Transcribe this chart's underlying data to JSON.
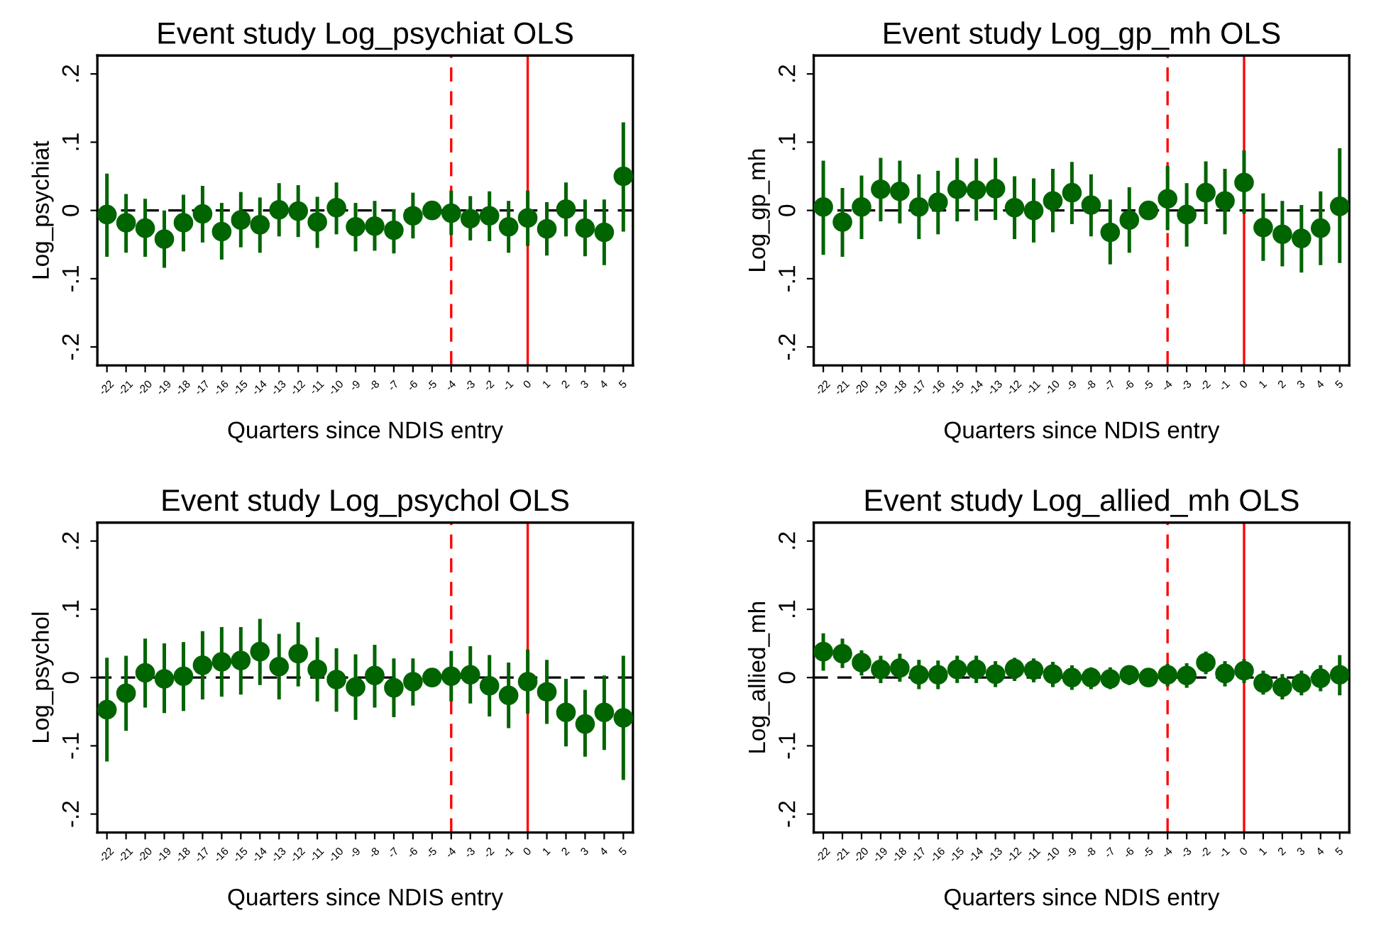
{
  "chart_data": [
    {
      "type": "scatter",
      "title": "Event study Log_psychiat OLS",
      "xlabel": "Quarters since NDIS entry",
      "ylabel": "Log_psychiat",
      "x": [
        -22,
        -21,
        -20,
        -19,
        -18,
        -17,
        -16,
        -15,
        -14,
        -13,
        -12,
        -11,
        -10,
        -9,
        -8,
        -7,
        -6,
        -5,
        -4,
        -3,
        -2,
        -1,
        0,
        1,
        2,
        3,
        4,
        5
      ],
      "series": [
        {
          "color": "#006400",
          "values": [
            -0.006,
            -0.018,
            -0.026,
            -0.042,
            -0.018,
            -0.005,
            -0.031,
            -0.014,
            -0.021,
            0.001,
            -0.001,
            -0.017,
            0.004,
            -0.024,
            -0.023,
            -0.029,
            -0.008,
            0.0,
            -0.004,
            -0.012,
            -0.008,
            -0.024,
            -0.011,
            -0.027,
            0.002,
            -0.026,
            -0.032,
            0.05
          ],
          "errors": [
            [
              -0.068,
              0.054
            ],
            [
              -0.062,
              0.024
            ],
            [
              -0.068,
              0.017
            ],
            [
              -0.084,
              0.0
            ],
            [
              -0.06,
              0.023
            ],
            [
              -0.047,
              0.036
            ],
            [
              -0.072,
              0.011
            ],
            [
              -0.054,
              0.027
            ],
            [
              -0.062,
              0.019
            ],
            [
              -0.038,
              0.04
            ],
            [
              -0.039,
              0.037
            ],
            [
              -0.055,
              0.02
            ],
            [
              -0.035,
              0.041
            ],
            [
              -0.06,
              0.011
            ],
            [
              -0.059,
              0.014
            ],
            [
              -0.063,
              0.002
            ],
            [
              -0.041,
              0.026
            ],
            null,
            [
              -0.036,
              0.029
            ],
            [
              -0.044,
              0.021
            ],
            [
              -0.045,
              0.028
            ],
            [
              -0.062,
              0.014
            ],
            [
              -0.052,
              0.029
            ],
            [
              -0.066,
              0.012
            ],
            [
              -0.038,
              0.041
            ],
            [
              -0.067,
              0.016
            ],
            [
              -0.08,
              0.016
            ],
            [
              -0.031,
              0.129
            ]
          ]
        }
      ],
      "xlim": [
        -22.5,
        5.5
      ],
      "xticks": [
        -22,
        -21,
        -20,
        -19,
        -18,
        -17,
        -16,
        -15,
        -14,
        -13,
        -12,
        -11,
        -10,
        -9,
        -8,
        -7,
        -6,
        -5,
        -4,
        -3,
        -2,
        -1,
        0,
        1,
        2,
        3,
        4,
        5
      ],
      "ylim": [
        -0.227,
        0.227
      ],
      "yticks": [
        {
          "value": -0.2,
          "label": "-.2"
        },
        {
          "value": -0.1,
          "label": "-.1"
        },
        {
          "value": 0,
          "label": "0"
        },
        {
          "value": 0.1,
          "label": ".1"
        },
        {
          "value": 0.2,
          "label": ".2"
        }
      ],
      "ref_lines": [
        {
          "axis": "x",
          "value": -4,
          "color": "#ff0000",
          "line_style": "dashed"
        },
        {
          "axis": "x",
          "value": 0,
          "color": "#ff0000",
          "line_style": "solid"
        },
        {
          "axis": "y",
          "value": 0,
          "color": "#000000",
          "line_style": "dashed"
        }
      ],
      "marker": "circle",
      "grid": false,
      "legend": false
    },
    {
      "type": "scatter",
      "title": "Event study Log_gp_mh OLS",
      "xlabel": "Quarters since NDIS entry",
      "ylabel": "Log_gp_mh",
      "x": [
        -22,
        -21,
        -20,
        -19,
        -18,
        -17,
        -16,
        -15,
        -14,
        -13,
        -12,
        -11,
        -10,
        -9,
        -8,
        -7,
        -6,
        -5,
        -4,
        -3,
        -2,
        -1,
        0,
        1,
        2,
        3,
        4,
        5
      ],
      "series": [
        {
          "color": "#006400",
          "values": [
            0.005,
            -0.017,
            0.005,
            0.031,
            0.028,
            0.005,
            0.012,
            0.031,
            0.03,
            0.032,
            0.004,
            0.0,
            0.014,
            0.026,
            0.008,
            -0.032,
            -0.014,
            0.0,
            0.017,
            -0.006,
            0.026,
            0.014,
            0.041,
            -0.025,
            -0.035,
            -0.041,
            -0.026,
            0.006
          ],
          "errors": [
            [
              -0.065,
              0.073
            ],
            [
              -0.068,
              0.033
            ],
            [
              -0.042,
              0.051
            ],
            [
              -0.016,
              0.077
            ],
            [
              -0.019,
              0.073
            ],
            [
              -0.042,
              0.053
            ],
            [
              -0.035,
              0.058
            ],
            [
              -0.016,
              0.077
            ],
            [
              -0.015,
              0.076
            ],
            [
              -0.014,
              0.077
            ],
            [
              -0.042,
              0.05
            ],
            [
              -0.047,
              0.047
            ],
            [
              -0.032,
              0.061
            ],
            [
              -0.02,
              0.071
            ],
            [
              -0.038,
              0.053
            ],
            [
              -0.079,
              0.016
            ],
            [
              -0.062,
              0.034
            ],
            null,
            [
              -0.029,
              0.065
            ],
            [
              -0.053,
              0.04
            ],
            [
              -0.02,
              0.072
            ],
            [
              -0.035,
              0.061
            ],
            [
              -0.005,
              0.088
            ],
            [
              -0.074,
              0.025
            ],
            [
              -0.082,
              0.014
            ],
            [
              -0.091,
              0.008
            ],
            [
              -0.08,
              0.028
            ],
            [
              -0.077,
              0.091
            ]
          ]
        }
      ],
      "xlim": [
        -22.5,
        5.5
      ],
      "xticks": [
        -22,
        -21,
        -20,
        -19,
        -18,
        -17,
        -16,
        -15,
        -14,
        -13,
        -12,
        -11,
        -10,
        -9,
        -8,
        -7,
        -6,
        -5,
        -4,
        -3,
        -2,
        -1,
        0,
        1,
        2,
        3,
        4,
        5
      ],
      "ylim": [
        -0.227,
        0.227
      ],
      "yticks": [
        {
          "value": -0.2,
          "label": "-.2"
        },
        {
          "value": -0.1,
          "label": "-.1"
        },
        {
          "value": 0,
          "label": "0"
        },
        {
          "value": 0.1,
          "label": ".1"
        },
        {
          "value": 0.2,
          "label": ".2"
        }
      ],
      "ref_lines": [
        {
          "axis": "x",
          "value": -4,
          "color": "#ff0000",
          "line_style": "dashed"
        },
        {
          "axis": "x",
          "value": 0,
          "color": "#ff0000",
          "line_style": "solid"
        },
        {
          "axis": "y",
          "value": 0,
          "color": "#000000",
          "line_style": "dashed"
        }
      ],
      "marker": "circle",
      "grid": false,
      "legend": false
    },
    {
      "type": "scatter",
      "title": "Event study Log_psychol OLS",
      "xlabel": "Quarters since NDIS entry",
      "ylabel": "Log_psychol",
      "x": [
        -22,
        -21,
        -20,
        -19,
        -18,
        -17,
        -16,
        -15,
        -14,
        -13,
        -12,
        -11,
        -10,
        -9,
        -8,
        -7,
        -6,
        -5,
        -4,
        -3,
        -2,
        -1,
        0,
        1,
        2,
        3,
        4,
        5
      ],
      "series": [
        {
          "color": "#006400",
          "values": [
            -0.047,
            -0.023,
            0.007,
            -0.002,
            0.002,
            0.018,
            0.023,
            0.025,
            0.038,
            0.016,
            0.035,
            0.012,
            -0.003,
            -0.014,
            0.003,
            -0.015,
            -0.006,
            0.0,
            0.002,
            0.004,
            -0.012,
            -0.026,
            -0.006,
            -0.021,
            -0.051,
            -0.068,
            -0.051,
            -0.059
          ],
          "errors": [
            [
              -0.123,
              0.029
            ],
            [
              -0.078,
              0.032
            ],
            [
              -0.044,
              0.057
            ],
            [
              -0.052,
              0.05
            ],
            [
              -0.049,
              0.052
            ],
            [
              -0.032,
              0.068
            ],
            [
              -0.028,
              0.074
            ],
            [
              -0.025,
              0.074
            ],
            [
              -0.011,
              0.086
            ],
            [
              -0.032,
              0.064
            ],
            [
              -0.013,
              0.081
            ],
            [
              -0.035,
              0.059
            ],
            [
              -0.05,
              0.043
            ],
            [
              -0.062,
              0.034
            ],
            [
              -0.044,
              0.048
            ],
            [
              -0.058,
              0.028
            ],
            [
              -0.041,
              0.028
            ],
            null,
            [
              -0.035,
              0.039
            ],
            [
              -0.038,
              0.046
            ],
            [
              -0.057,
              0.033
            ],
            [
              -0.074,
              0.022
            ],
            [
              -0.053,
              0.041
            ],
            [
              -0.068,
              0.026
            ],
            [
              -0.101,
              -0.002
            ],
            [
              -0.116,
              -0.018
            ],
            [
              -0.106,
              0.003
            ],
            [
              -0.15,
              0.032
            ]
          ]
        }
      ],
      "xlim": [
        -22.5,
        5.5
      ],
      "xticks": [
        -22,
        -21,
        -20,
        -19,
        -18,
        -17,
        -16,
        -15,
        -14,
        -13,
        -12,
        -11,
        -10,
        -9,
        -8,
        -7,
        -6,
        -5,
        -4,
        -3,
        -2,
        -1,
        0,
        1,
        2,
        3,
        4,
        5
      ],
      "ylim": [
        -0.227,
        0.227
      ],
      "yticks": [
        {
          "value": -0.2,
          "label": "-.2"
        },
        {
          "value": -0.1,
          "label": "-.1"
        },
        {
          "value": 0,
          "label": "0"
        },
        {
          "value": 0.1,
          "label": ".1"
        },
        {
          "value": 0.2,
          "label": ".2"
        }
      ],
      "ref_lines": [
        {
          "axis": "x",
          "value": -4,
          "color": "#ff0000",
          "line_style": "dashed"
        },
        {
          "axis": "x",
          "value": 0,
          "color": "#ff0000",
          "line_style": "solid"
        },
        {
          "axis": "y",
          "value": 0,
          "color": "#000000",
          "line_style": "dashed"
        }
      ],
      "marker": "circle",
      "grid": false,
      "legend": false
    },
    {
      "type": "scatter",
      "title": "Event study Log_allied_mh OLS",
      "xlabel": "Quarters since NDIS entry",
      "ylabel": "Log_allied_mh",
      "x": [
        -22,
        -21,
        -20,
        -19,
        -18,
        -17,
        -16,
        -15,
        -14,
        -13,
        -12,
        -11,
        -10,
        -9,
        -8,
        -7,
        -6,
        -5,
        -4,
        -3,
        -2,
        -1,
        0,
        1,
        2,
        3,
        4,
        5
      ],
      "series": [
        {
          "color": "#006400",
          "values": [
            0.038,
            0.035,
            0.022,
            0.012,
            0.014,
            0.004,
            0.004,
            0.012,
            0.012,
            0.005,
            0.013,
            0.011,
            0.005,
            0.0,
            0.0,
            -0.002,
            0.004,
            0.0,
            0.004,
            0.003,
            0.022,
            0.006,
            0.01,
            -0.008,
            -0.014,
            -0.008,
            -0.001,
            0.004
          ],
          "errors": [
            [
              0.01,
              0.065
            ],
            [
              0.014,
              0.057
            ],
            [
              0.003,
              0.04
            ],
            [
              -0.008,
              0.032
            ],
            [
              -0.006,
              0.035
            ],
            [
              -0.017,
              0.026
            ],
            [
              -0.017,
              0.025
            ],
            [
              -0.008,
              0.032
            ],
            [
              -0.008,
              0.032
            ],
            [
              -0.014,
              0.024
            ],
            [
              -0.005,
              0.029
            ],
            [
              -0.007,
              0.028
            ],
            [
              -0.014,
              0.023
            ],
            [
              -0.018,
              0.018
            ],
            [
              -0.017,
              0.015
            ],
            [
              -0.017,
              0.015
            ],
            [
              -0.011,
              0.017
            ],
            null,
            [
              -0.013,
              0.02
            ],
            [
              -0.015,
              0.021
            ],
            [
              0.005,
              0.038
            ],
            [
              -0.013,
              0.024
            ],
            [
              -0.008,
              0.027
            ],
            [
              -0.025,
              0.01
            ],
            [
              -0.032,
              0.005
            ],
            [
              -0.026,
              0.01
            ],
            [
              -0.02,
              0.018
            ],
            [
              -0.026,
              0.033
            ]
          ]
        }
      ],
      "xlim": [
        -22.5,
        5.5
      ],
      "xticks": [
        -22,
        -21,
        -20,
        -19,
        -18,
        -17,
        -16,
        -15,
        -14,
        -13,
        -12,
        -11,
        -10,
        -9,
        -8,
        -7,
        -6,
        -5,
        -4,
        -3,
        -2,
        -1,
        0,
        1,
        2,
        3,
        4,
        5
      ],
      "ylim": [
        -0.227,
        0.227
      ],
      "yticks": [
        {
          "value": -0.2,
          "label": "-.2"
        },
        {
          "value": -0.1,
          "label": "-.1"
        },
        {
          "value": 0,
          "label": "0"
        },
        {
          "value": 0.1,
          "label": ".1"
        },
        {
          "value": 0.2,
          "label": ".2"
        }
      ],
      "ref_lines": [
        {
          "axis": "x",
          "value": -4,
          "color": "#ff0000",
          "line_style": "dashed"
        },
        {
          "axis": "x",
          "value": 0,
          "color": "#ff0000",
          "line_style": "solid"
        },
        {
          "axis": "y",
          "value": 0,
          "color": "#000000",
          "line_style": "dashed"
        }
      ],
      "marker": "circle",
      "grid": false,
      "legend": false
    }
  ]
}
